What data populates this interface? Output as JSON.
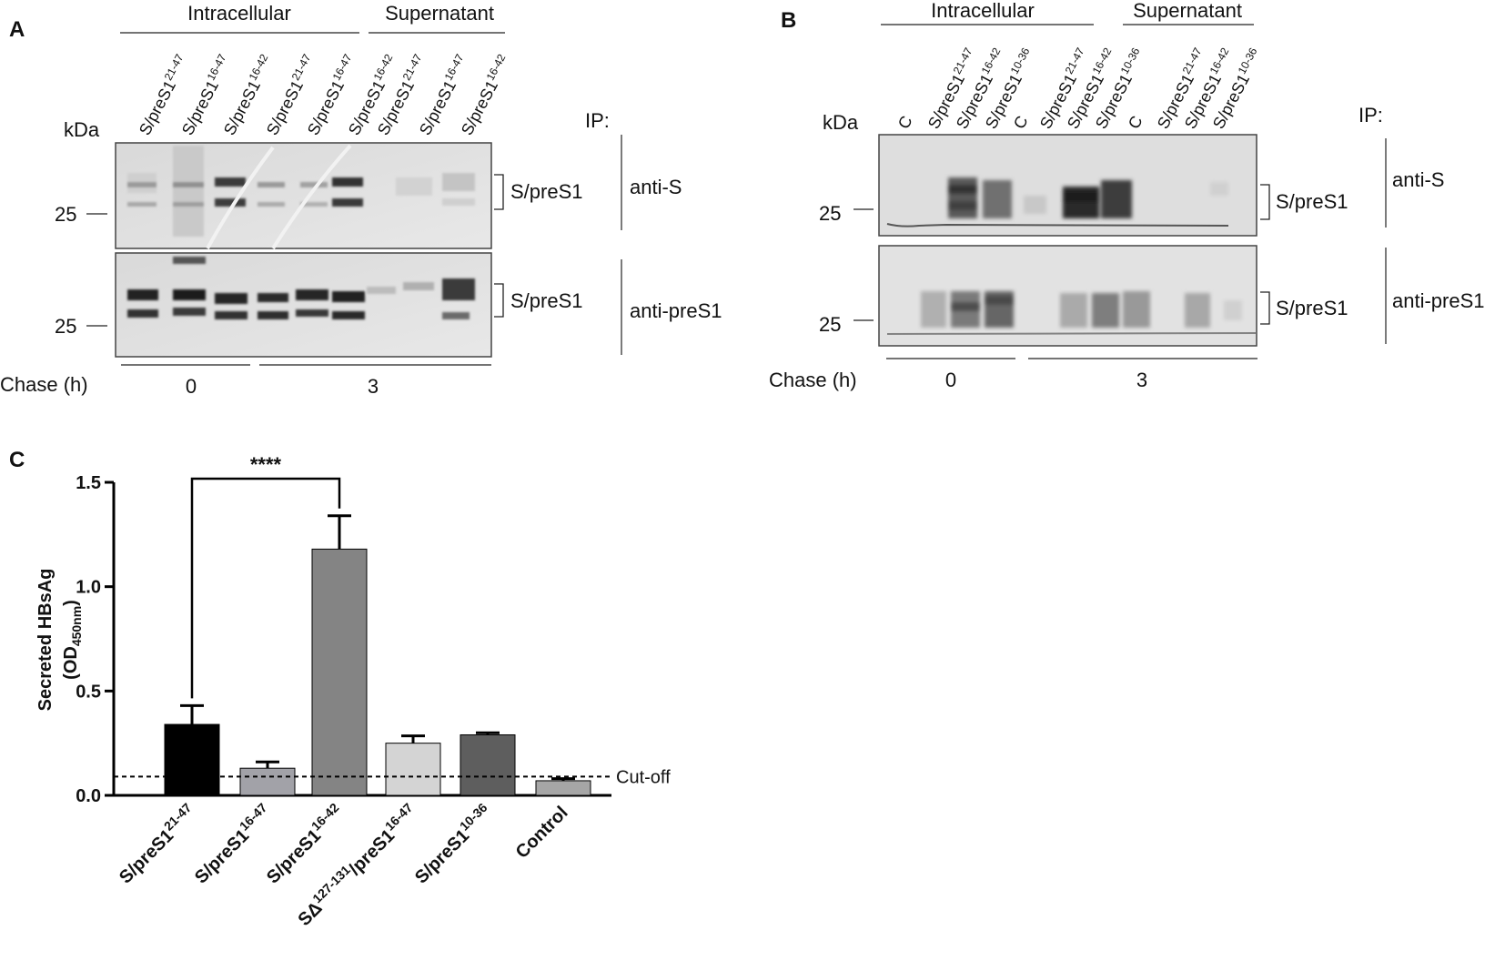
{
  "panel_a": {
    "letter": "A",
    "group_intracellular": "Intracellular",
    "group_supernatant": "Supernatant",
    "kda": "kDa",
    "ip_label": "IP:",
    "lanes": [
      {
        "base": "S/preS1",
        "sup": "21-47"
      },
      {
        "base": "S/preS1",
        "sup": "16-47"
      },
      {
        "base": "S/preS1",
        "sup": "16-42"
      },
      {
        "base": "S/preS1",
        "sup": "21-47"
      },
      {
        "base": "S/preS1",
        "sup": "16-47"
      },
      {
        "base": "S/preS1",
        "sup": "16-42"
      },
      {
        "base": "S/preS1",
        "sup": "21-47"
      },
      {
        "base": "S/preS1",
        "sup": "16-47"
      },
      {
        "base": "S/preS1",
        "sup": "16-42"
      }
    ],
    "blots": [
      {
        "marker": "25",
        "band_label": "S/preS1",
        "ip": "anti-S"
      },
      {
        "marker": "25",
        "band_label": "S/preS1",
        "ip": "anti-preS1"
      }
    ],
    "chase_label": "Chase (h)",
    "chase_values": [
      "0",
      "3"
    ]
  },
  "panel_b": {
    "letter": "B",
    "group_intracellular": "Intracellular",
    "group_supernatant": "Supernatant",
    "kda": "kDa",
    "ip_label": "IP:",
    "lanes": [
      {
        "base": "C",
        "sup": ""
      },
      {
        "base": "S/preS1",
        "sup": "21-47"
      },
      {
        "base": "S/preS1",
        "sup": "16-42"
      },
      {
        "base": "S/preS1",
        "sup": "10-36"
      },
      {
        "base": "C",
        "sup": ""
      },
      {
        "base": "S/preS1",
        "sup": "21-47"
      },
      {
        "base": "S/preS1",
        "sup": "16-42"
      },
      {
        "base": "S/preS1",
        "sup": "10-36"
      },
      {
        "base": "C",
        "sup": ""
      },
      {
        "base": "S/preS1",
        "sup": "21-47"
      },
      {
        "base": "S/preS1",
        "sup": "16-42"
      },
      {
        "base": "S/preS1",
        "sup": "10-36"
      }
    ],
    "blots": [
      {
        "marker": "25",
        "band_label": "S/preS1",
        "ip": "anti-S"
      },
      {
        "marker": "25",
        "band_label": "S/preS1",
        "ip": "anti-preS1"
      }
    ],
    "chase_label": "Chase (h)",
    "chase_values": [
      "0",
      "3"
    ]
  },
  "chart_data": {
    "type": "bar",
    "panel_letter": "C",
    "ylabel_line1": "Secreted HBsAg",
    "ylabel_line2_base": "(OD",
    "ylabel_line2_sub": "450nm",
    "ylabel_line2_end": ")",
    "ylim": [
      0,
      1.5
    ],
    "yticks": [
      "0.0",
      "0.5",
      "1.0",
      "1.5"
    ],
    "categories": [
      {
        "base": "S/preS1",
        "sup": "21-47",
        "prefix": "",
        "prefix_sup": ""
      },
      {
        "base": "S/preS1",
        "sup": "16-47",
        "prefix": "",
        "prefix_sup": ""
      },
      {
        "base": "S/preS1",
        "sup": "16-42",
        "prefix": "",
        "prefix_sup": ""
      },
      {
        "base": "/preS1",
        "sup": "16-47",
        "prefix": "SΔ",
        "prefix_sup": "127-131"
      },
      {
        "base": "S/preS1",
        "sup": "10-36",
        "prefix": "",
        "prefix_sup": ""
      },
      {
        "base": "Control",
        "sup": "",
        "prefix": "",
        "prefix_sup": ""
      }
    ],
    "values": [
      0.34,
      0.13,
      1.18,
      0.25,
      0.29,
      0.07
    ],
    "errors": [
      0.09,
      0.03,
      0.16,
      0.035,
      0.01,
      0.01
    ],
    "colors": [
      "#000000",
      "#a2a2a8",
      "#848484",
      "#d4d4d4",
      "#5e5e5e",
      "#a6a6a6"
    ],
    "cutoff": {
      "value": 0.09,
      "label": "Cut-off"
    },
    "significance": {
      "from": 0,
      "to": 2,
      "label": "****"
    }
  }
}
